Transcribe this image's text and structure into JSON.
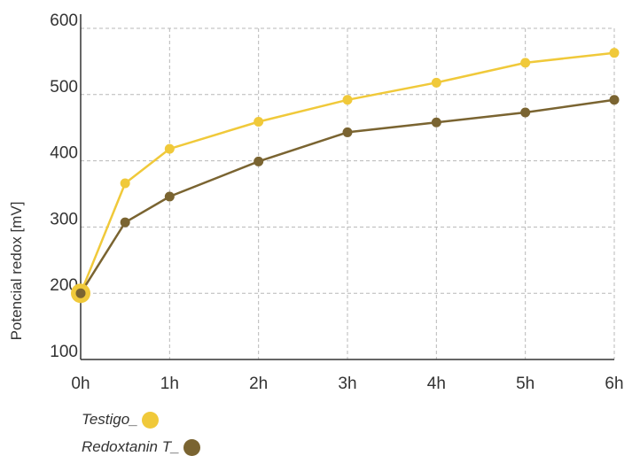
{
  "chart_data": {
    "type": "line",
    "title": "",
    "xlabel": "",
    "ylabel": "Potencial redox [mV]",
    "x_ticks": [
      "0h",
      "1h",
      "2h",
      "3h",
      "4h",
      "5h",
      "6h"
    ],
    "ylim": [
      100,
      600
    ],
    "y_ticks": [
      "100",
      "200",
      "300",
      "400",
      "500",
      "600"
    ],
    "grid": true,
    "legend_position": "bottom-left",
    "series": [
      {
        "name": "Testigo_",
        "color": "#f0c93a",
        "points": [
          [
            0,
            200
          ],
          [
            0.5,
            366
          ],
          [
            1,
            418
          ],
          [
            2,
            459
          ],
          [
            3,
            492
          ],
          [
            4,
            518
          ],
          [
            5,
            548
          ],
          [
            6,
            563
          ]
        ]
      },
      {
        "name": "Redoxtanin T_",
        "color": "#7a6431",
        "points": [
          [
            0,
            200
          ],
          [
            0.5,
            307
          ],
          [
            1,
            346
          ],
          [
            2,
            399
          ],
          [
            3,
            443
          ],
          [
            4,
            458
          ],
          [
            5,
            473
          ],
          [
            6,
            492
          ]
        ]
      }
    ]
  }
}
